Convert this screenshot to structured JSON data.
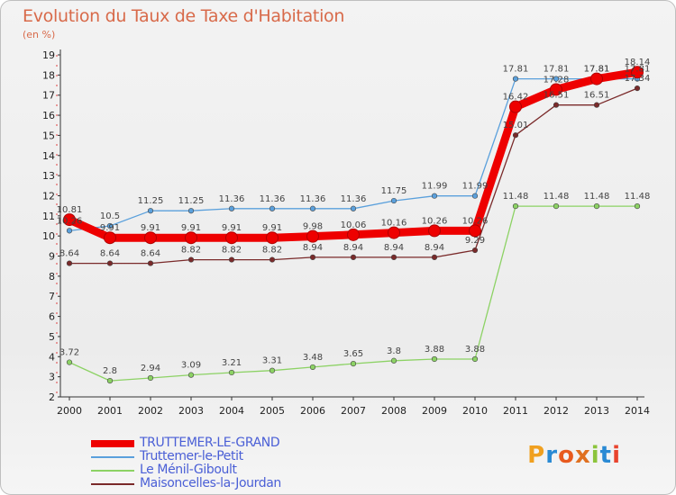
{
  "title": "Evolution du Taux de Taxe d'Habitation",
  "subtitle": "(en %)",
  "logo_text": "Proxiti",
  "chart_data": {
    "type": "line",
    "x": [
      "2000",
      "2001",
      "2002",
      "2003",
      "2004",
      "2005",
      "2006",
      "2007",
      "2008",
      "2009",
      "2010",
      "2011",
      "2012",
      "2013",
      "2014"
    ],
    "ylim": [
      2,
      19
    ],
    "yticks": [
      2,
      3,
      4,
      5,
      6,
      7,
      8,
      9,
      10,
      11,
      12,
      13,
      14,
      15,
      16,
      17,
      18,
      19
    ],
    "grid": false,
    "legend_position": "bottom-left",
    "series": [
      {
        "name": "TRUTTEMER-LE-GRAND",
        "color": "#ee0000",
        "width": 9,
        "values": [
          10.81,
          9.91,
          9.91,
          9.91,
          9.91,
          9.91,
          9.98,
          10.06,
          10.16,
          10.26,
          10.26,
          16.42,
          17.28,
          17.81,
          18.14
        ],
        "labels": [
          "10.81",
          "9.91",
          "9.91",
          "9.91",
          "9.91",
          "9.91",
          "9.98",
          "10.06",
          "10.16",
          "10.26",
          "10.26",
          "16.42",
          "17.28",
          "17.81",
          "18.14"
        ]
      },
      {
        "name": "Truttemer-le-Petit",
        "color": "#5aa0dc",
        "width": 1.3,
        "values": [
          10.26,
          10.5,
          11.25,
          11.25,
          11.36,
          11.36,
          11.36,
          11.36,
          11.75,
          11.99,
          11.99,
          17.81,
          17.81,
          17.81,
          17.81
        ],
        "labels": [
          "10.26",
          "10.5",
          "11.25",
          "11.25",
          "11.36",
          "11.36",
          "11.36",
          "11.36",
          "11.75",
          "11.99",
          "11.99",
          "17.81",
          "17.81",
          "17.81",
          "17.81"
        ]
      },
      {
        "name": "Le Ménil-Giboult",
        "color": "#8cd264",
        "width": 1.3,
        "values": [
          3.72,
          2.8,
          2.94,
          3.09,
          3.21,
          3.31,
          3.48,
          3.65,
          3.8,
          3.88,
          3.88,
          11.48,
          11.48,
          11.48,
          11.48
        ],
        "labels": [
          "3.72",
          "2.8",
          "2.94",
          "3.09",
          "3.21",
          "3.31",
          "3.48",
          "3.65",
          "3.8",
          "3.88",
          "3.88",
          "11.48",
          "11.48",
          "11.48",
          "11.48"
        ]
      },
      {
        "name": "Maisoncelles-la-Jourdan",
        "color": "#7a2a2a",
        "width": 1.3,
        "values": [
          8.64,
          8.64,
          8.64,
          8.82,
          8.82,
          8.82,
          8.94,
          8.94,
          8.94,
          8.94,
          9.29,
          15.01,
          16.51,
          16.51,
          17.34
        ],
        "labels": [
          "8.64",
          "8.64",
          "8.64",
          "8.82",
          "8.82",
          "8.82",
          "8.94",
          "8.94",
          "8.94",
          "8.94",
          "9.29",
          "15.01",
          "16.51",
          "16.51",
          "17.34"
        ]
      }
    ]
  }
}
